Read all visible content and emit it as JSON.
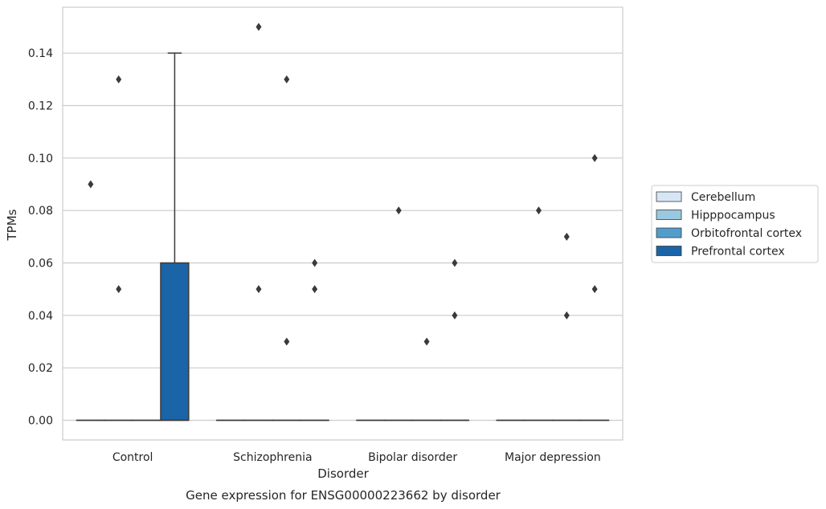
{
  "chart_data": {
    "type": "box",
    "caption": "Gene expression for ENSG00000223662 by disorder",
    "xlabel": "Disorder",
    "ylabel": "TPMs",
    "ylim": [
      -0.0075,
      0.1575
    ],
    "yticks": [
      0.0,
      0.02,
      0.04,
      0.06,
      0.08,
      0.1,
      0.12,
      0.14
    ],
    "ytick_labels": [
      "0.00",
      "0.02",
      "0.04",
      "0.06",
      "0.08",
      "0.10",
      "0.12",
      "0.14"
    ],
    "grid": "horizontal",
    "legend_placement": "right",
    "categories": [
      "Control",
      "Schizophrenia",
      "Bipolar disorder",
      "Major depression"
    ],
    "series": [
      {
        "name": "Cerebellum",
        "color": "#d6e6f4",
        "boxes": [
          {
            "q1": 0,
            "median": 0,
            "q3": 0,
            "whisker_low": 0,
            "whisker_high": 0,
            "outliers": [
              0.09
            ]
          },
          {
            "q1": 0,
            "median": 0,
            "q3": 0,
            "whisker_low": 0,
            "whisker_high": 0,
            "outliers": []
          },
          {
            "q1": 0,
            "median": 0,
            "q3": 0,
            "whisker_low": 0,
            "whisker_high": 0,
            "outliers": []
          },
          {
            "q1": 0,
            "median": 0,
            "q3": 0,
            "whisker_low": 0,
            "whisker_high": 0,
            "outliers": []
          }
        ]
      },
      {
        "name": "Hipppocampus",
        "color": "#9ac8e0",
        "boxes": [
          {
            "q1": 0,
            "median": 0,
            "q3": 0,
            "whisker_low": 0,
            "whisker_high": 0,
            "outliers": [
              0.05,
              0.13
            ]
          },
          {
            "q1": 0,
            "median": 0,
            "q3": 0,
            "whisker_low": 0,
            "whisker_high": 0,
            "outliers": [
              0.05,
              0.15
            ]
          },
          {
            "q1": 0,
            "median": 0,
            "q3": 0,
            "whisker_low": 0,
            "whisker_high": 0,
            "outliers": [
              0.08
            ]
          },
          {
            "q1": 0,
            "median": 0,
            "q3": 0,
            "whisker_low": 0,
            "whisker_high": 0,
            "outliers": [
              0.08
            ]
          }
        ]
      },
      {
        "name": "Orbitofrontal cortex",
        "color": "#529dcc",
        "boxes": [
          {
            "q1": 0,
            "median": 0,
            "q3": 0,
            "whisker_low": 0,
            "whisker_high": 0,
            "outliers": []
          },
          {
            "q1": 0,
            "median": 0,
            "q3": 0,
            "whisker_low": 0,
            "whisker_high": 0,
            "outliers": [
              0.03,
              0.13
            ]
          },
          {
            "q1": 0,
            "median": 0,
            "q3": 0,
            "whisker_low": 0,
            "whisker_high": 0,
            "outliers": [
              0.03
            ]
          },
          {
            "q1": 0,
            "median": 0,
            "q3": 0,
            "whisker_low": 0,
            "whisker_high": 0,
            "outliers": [
              0.04,
              0.07
            ]
          }
        ]
      },
      {
        "name": "Prefrontal cortex",
        "color": "#1b64a8",
        "boxes": [
          {
            "q1": 0,
            "median": 0,
            "q3": 0.06,
            "whisker_low": 0,
            "whisker_high": 0.14,
            "outliers": []
          },
          {
            "q1": 0,
            "median": 0,
            "q3": 0,
            "whisker_low": 0,
            "whisker_high": 0,
            "outliers": [
              0.05,
              0.06
            ]
          },
          {
            "q1": 0,
            "median": 0,
            "q3": 0,
            "whisker_low": 0,
            "whisker_high": 0,
            "outliers": [
              0.04,
              0.06
            ]
          },
          {
            "q1": 0,
            "median": 0,
            "q3": 0,
            "whisker_low": 0,
            "whisker_high": 0,
            "outliers": [
              0.05,
              0.1
            ]
          }
        ]
      }
    ]
  }
}
